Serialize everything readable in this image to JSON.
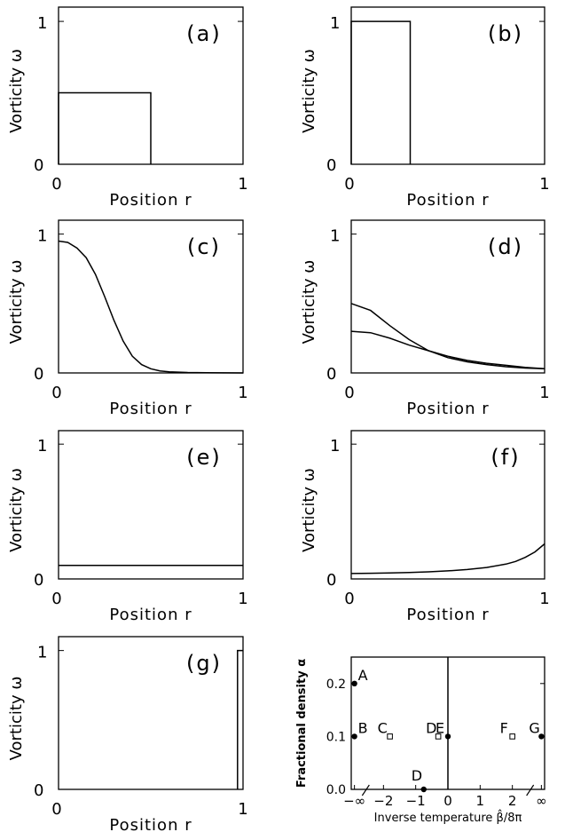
{
  "chart_data": [
    {
      "type": "line",
      "panel": "(a)",
      "xlabel": "Position r",
      "ylabel": "Vorticity ω",
      "xlim": [
        0,
        1
      ],
      "ylim": [
        0,
        1.1
      ],
      "x_ticks": [
        "0",
        "1"
      ],
      "y_ticks": [
        "0",
        "1"
      ],
      "series": [
        {
          "x": [
            0,
            0,
            0.5,
            0.5
          ],
          "y": [
            0,
            0.5,
            0.5,
            0
          ]
        }
      ]
    },
    {
      "type": "line",
      "panel": "(b)",
      "xlabel": "Position r",
      "ylabel": "Vorticity ω",
      "xlim": [
        0,
        1
      ],
      "ylim": [
        0,
        1.1
      ],
      "x_ticks": [
        "0",
        "1"
      ],
      "y_ticks": [
        "0",
        "1"
      ],
      "series": [
        {
          "x": [
            0,
            0,
            0.305,
            0.305
          ],
          "y": [
            0,
            1,
            1,
            0
          ]
        }
      ]
    },
    {
      "type": "line",
      "panel": "(c)",
      "xlabel": "Position r",
      "ylabel": "Vorticity ω",
      "xlim": [
        0,
        1
      ],
      "ylim": [
        0,
        1.1
      ],
      "x_ticks": [
        "0",
        "1"
      ],
      "y_ticks": [
        "0",
        "1"
      ],
      "series": [
        {
          "x": [
            0,
            0.05,
            0.1,
            0.15,
            0.2,
            0.25,
            0.3,
            0.35,
            0.4,
            0.45,
            0.5,
            0.55,
            0.6,
            0.7,
            0.8,
            0.9,
            1.0
          ],
          "y": [
            0.95,
            0.94,
            0.9,
            0.83,
            0.71,
            0.55,
            0.38,
            0.23,
            0.12,
            0.06,
            0.03,
            0.015,
            0.008,
            0.003,
            0.001,
            0.0005,
            0.0003
          ]
        }
      ]
    },
    {
      "type": "line",
      "panel": "(d)",
      "xlabel": "Position r",
      "ylabel": "Vorticity ω",
      "xlim": [
        0,
        1
      ],
      "ylim": [
        0,
        1.1
      ],
      "x_ticks": [
        "0",
        "1"
      ],
      "y_ticks": [
        "0",
        "1"
      ],
      "series": [
        {
          "x": [
            0,
            0.1,
            0.2,
            0.3,
            0.4,
            0.5,
            0.6,
            0.7,
            0.8,
            0.9,
            1.0
          ],
          "y": [
            0.5,
            0.45,
            0.34,
            0.24,
            0.16,
            0.11,
            0.08,
            0.06,
            0.045,
            0.035,
            0.03
          ]
        },
        {
          "x": [
            0,
            0.1,
            0.2,
            0.3,
            0.4,
            0.5,
            0.6,
            0.7,
            0.8,
            0.9,
            1.0
          ],
          "y": [
            0.3,
            0.29,
            0.25,
            0.2,
            0.16,
            0.12,
            0.09,
            0.07,
            0.055,
            0.04,
            0.03
          ]
        }
      ]
    },
    {
      "type": "line",
      "panel": "(e)",
      "xlabel": "Position r",
      "ylabel": "Vorticity ω",
      "xlim": [
        0,
        1
      ],
      "ylim": [
        0,
        1.1
      ],
      "x_ticks": [
        "0",
        "1"
      ],
      "y_ticks": [
        "0",
        "1"
      ],
      "series": [
        {
          "x": [
            0,
            1
          ],
          "y": [
            0.1,
            0.1
          ]
        }
      ]
    },
    {
      "type": "line",
      "panel": "(f)",
      "xlabel": "Position r",
      "ylabel": "Vorticity ω",
      "xlim": [
        0,
        1
      ],
      "ylim": [
        0,
        1.1
      ],
      "x_ticks": [
        "0",
        "1"
      ],
      "y_ticks": [
        "0",
        "1"
      ],
      "series": [
        {
          "x": [
            0,
            0.1,
            0.2,
            0.3,
            0.4,
            0.5,
            0.6,
            0.7,
            0.8,
            0.85,
            0.9,
            0.95,
            1.0
          ],
          "y": [
            0.04,
            0.042,
            0.045,
            0.048,
            0.053,
            0.06,
            0.07,
            0.085,
            0.11,
            0.13,
            0.16,
            0.2,
            0.26
          ]
        }
      ]
    },
    {
      "type": "line",
      "panel": "(g)",
      "xlabel": "Position r",
      "ylabel": "Vorticity ω",
      "xlim": [
        0,
        1
      ],
      "ylim": [
        0,
        1.1
      ],
      "x_ticks": [
        "0",
        "1"
      ],
      "y_ticks": [
        "0",
        "1"
      ],
      "series": [
        {
          "x": [
            0.97,
            0.97,
            1.0
          ],
          "y": [
            0,
            1,
            1
          ]
        }
      ]
    },
    {
      "type": "scatter",
      "xlabel": "Inverse temperature β̂/8π",
      "ylabel": "Fractional density α",
      "xlim": [
        -3,
        3
      ],
      "ylim": [
        0,
        0.25
      ],
      "x_ticks": [
        {
          "value": -2.9,
          "label": "−∞"
        },
        {
          "value": -2,
          "label": "−2"
        },
        {
          "value": -1,
          "label": "−1"
        },
        {
          "value": 0,
          "label": "0"
        },
        {
          "value": 1,
          "label": "1"
        },
        {
          "value": 2,
          "label": "2"
        },
        {
          "value": 2.9,
          "label": "∞"
        }
      ],
      "y_ticks": [
        "0.0",
        "0.1",
        "0.2"
      ],
      "vertical_line_x": 0,
      "points": [
        {
          "label": "A",
          "x": -2.9,
          "y": 0.2,
          "marker": "filled"
        },
        {
          "label": "B",
          "x": -2.9,
          "y": 0.1,
          "marker": "filled"
        },
        {
          "label": "C",
          "x": -1.8,
          "y": 0.1,
          "marker": "open"
        },
        {
          "label": "D",
          "x": -0.3,
          "y": 0.1,
          "marker": "open"
        },
        {
          "label": "E",
          "x": 0,
          "y": 0.1,
          "marker": "filled"
        },
        {
          "label": "F",
          "x": 2,
          "y": 0.1,
          "marker": "open"
        },
        {
          "label": "G",
          "x": 2.9,
          "y": 0.1,
          "marker": "filled"
        },
        {
          "label": "D",
          "x": -0.75,
          "y": 0.0,
          "marker": "filled"
        }
      ]
    }
  ]
}
